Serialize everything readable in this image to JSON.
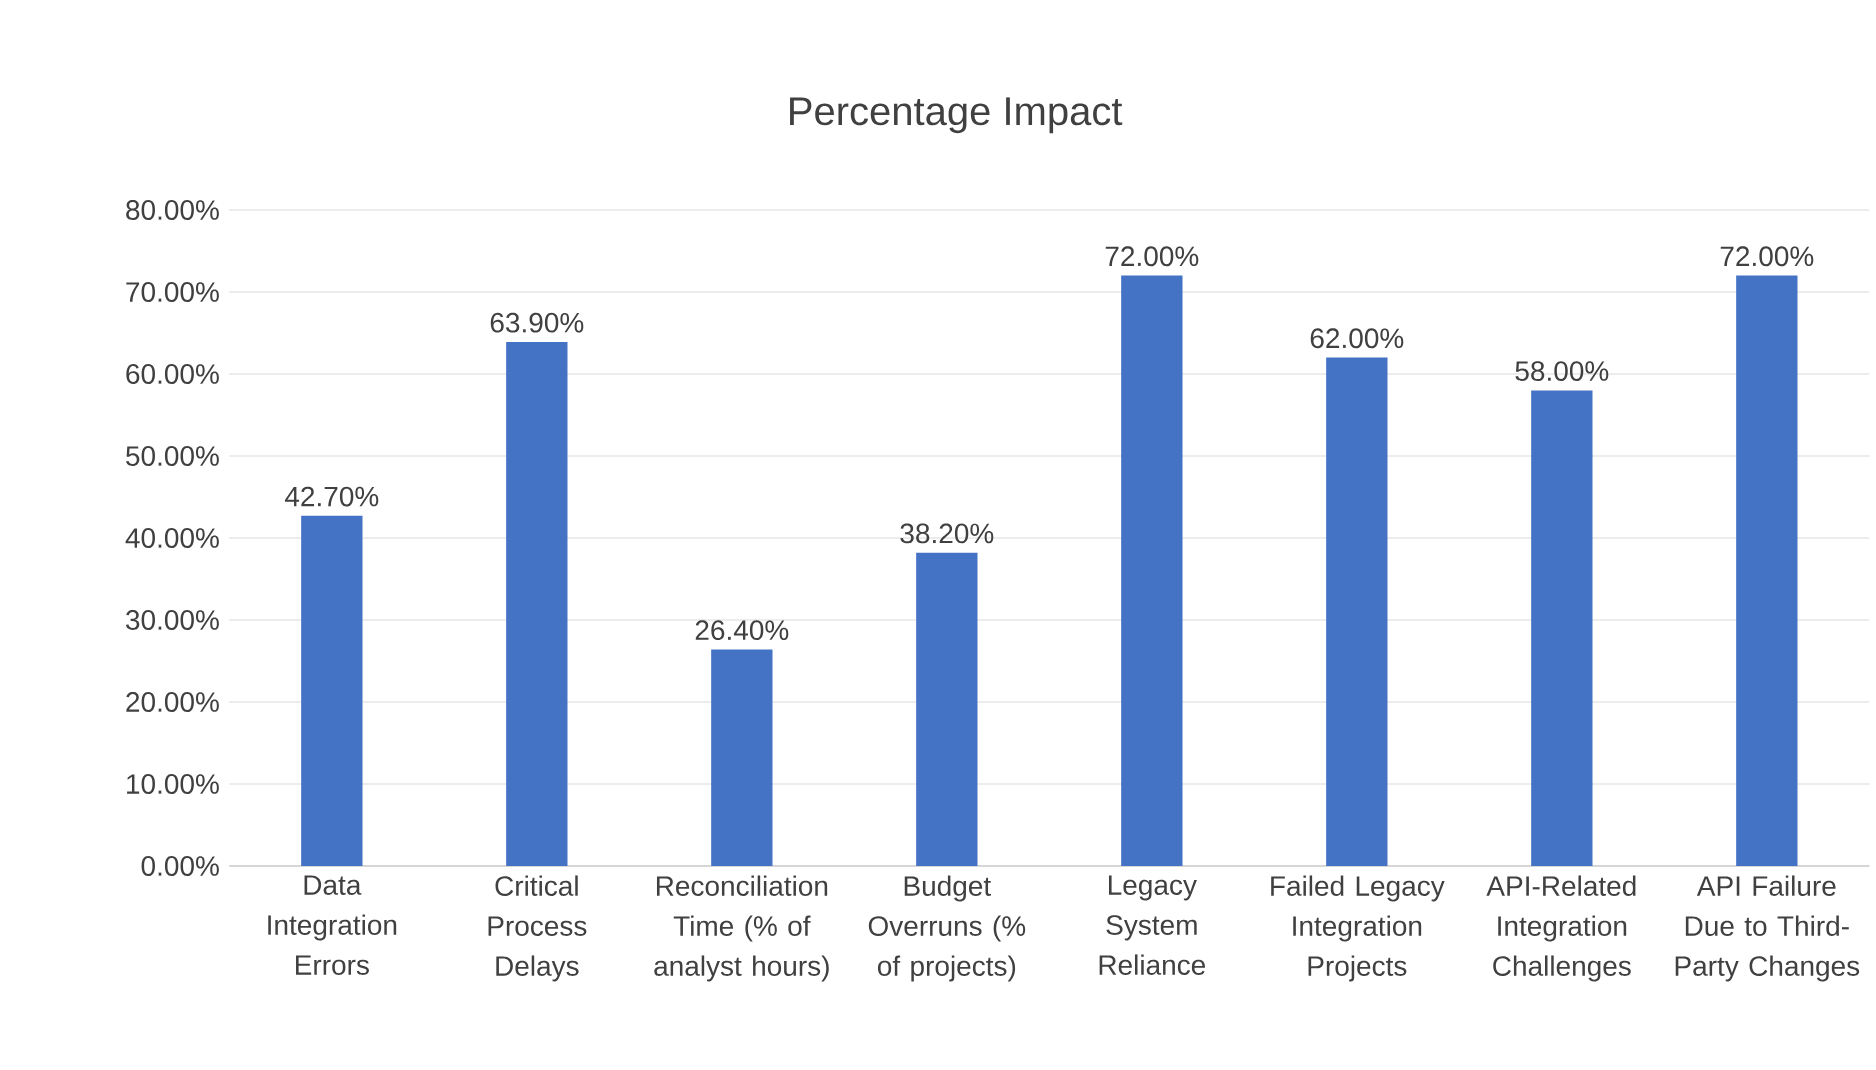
{
  "chart_data": {
    "type": "bar",
    "title": "Percentage Impact",
    "categories": [
      "Data Integration Errors",
      "Critical Process Delays",
      "Reconciliation Time (% of analyst hours)",
      "Budget Overruns (% of projects)",
      "Legacy System Reliance",
      "Failed Legacy Integration Projects",
      "API-Related Integration Challenges",
      "API Failure Due to Third-Party Changes"
    ],
    "values": [
      42.7,
      63.9,
      26.4,
      38.2,
      72,
      62,
      58,
      72
    ],
    "value_labels": [
      "42.70%",
      "63.90%",
      "26.40%",
      "38.20%",
      "72.00%",
      "62.00%",
      "58.00%",
      "72.00%"
    ],
    "color": "#4472c4",
    "ylim": [
      0,
      80
    ],
    "yticks": [
      {
        "value": 0,
        "label": "0.00%"
      },
      {
        "value": 10,
        "label": "10.00%"
      },
      {
        "value": 20,
        "label": "20.00%"
      },
      {
        "value": 30,
        "label": "30.00%"
      },
      {
        "value": 40,
        "label": "40.00%"
      },
      {
        "value": 50,
        "label": "50.00%"
      },
      {
        "value": 60,
        "label": "60.00%"
      },
      {
        "value": 70,
        "label": "70.00%"
      },
      {
        "value": 80,
        "label": "80.00%"
      }
    ],
    "grid": "y"
  }
}
